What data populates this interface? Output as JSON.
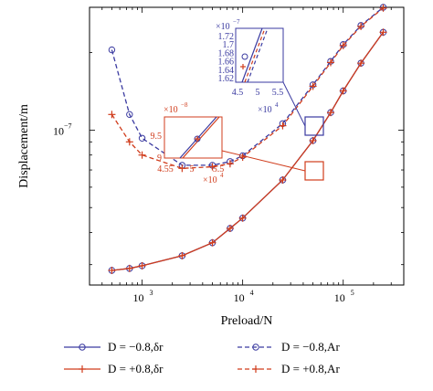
{
  "colors": {
    "blue": "#3a3aa0",
    "red": "#d03c1c",
    "axis": "#000000"
  },
  "chart_data": {
    "type": "line",
    "xlabel": "Preload/N",
    "ylabel": "Displacement/m",
    "xscale": "log",
    "yscale": "log",
    "xlim": [
      300,
      400000
    ],
    "ylim": [
      2.5e-08,
      3e-07
    ],
    "x_ticks": [
      {
        "value": 1000,
        "base": "10",
        "exp": "3"
      },
      {
        "value": 10000,
        "base": "10",
        "exp": "4"
      },
      {
        "value": 100000,
        "base": "10",
        "exp": "5"
      }
    ],
    "y_ticks": [
      {
        "value": 1e-07,
        "base": "10",
        "exp": "−7"
      }
    ],
    "series": [
      {
        "name": "D = −0.8,δr",
        "color": "#3a3aa0",
        "dash": "solid",
        "marker": "circle",
        "x": [
          500,
          750,
          1000,
          2500,
          5000,
          7500,
          10000,
          25000,
          50000,
          75000,
          100000,
          150000,
          250000
        ],
        "y": [
          2.85e-08,
          2.9e-08,
          2.97e-08,
          3.25e-08,
          3.65e-08,
          4.15e-08,
          4.55e-08,
          6.4e-08,
          9.1e-08,
          1.17e-07,
          1.42e-07,
          1.82e-07,
          2.4e-07
        ]
      },
      {
        "name": "D = +0.8,δr",
        "color": "#d03c1c",
        "dash": "solid",
        "marker": "plus",
        "x": [
          500,
          750,
          1000,
          2500,
          5000,
          7500,
          10000,
          25000,
          50000,
          75000,
          100000,
          150000,
          250000
        ],
        "y": [
          2.85e-08,
          2.9e-08,
          2.97e-08,
          3.25e-08,
          3.65e-08,
          4.15e-08,
          4.55e-08,
          6.4e-08,
          9.1e-08,
          1.17e-07,
          1.42e-07,
          1.82e-07,
          2.4e-07
        ]
      },
      {
        "name": "D = −0.8,Ar",
        "color": "#3a3aa0",
        "dash": "dashed",
        "marker": "circle",
        "x": [
          500,
          750,
          1000,
          2500,
          5000,
          7500,
          10000,
          25000,
          50000,
          75000,
          100000,
          150000,
          250000
        ],
        "y": [
          2.05e-07,
          1.15e-07,
          9.3e-08,
          7.3e-08,
          7.3e-08,
          7.55e-08,
          7.95e-08,
          1.06e-07,
          1.5e-07,
          1.85e-07,
          2.15e-07,
          2.55e-07,
          3e-07
        ]
      },
      {
        "name": "D = +0.8,Ar",
        "color": "#d03c1c",
        "dash": "dashed",
        "marker": "plus",
        "x": [
          500,
          750,
          1000,
          2500,
          5000,
          7500,
          10000,
          25000,
          50000,
          75000,
          100000,
          150000,
          250000
        ],
        "y": [
          1.15e-07,
          9e-08,
          8e-08,
          7.1e-08,
          7.2e-08,
          7.4e-08,
          7.85e-08,
          1.04e-07,
          1.48e-07,
          1.83e-07,
          2.13e-07,
          2.53e-07,
          2.98e-07
        ]
      }
    ],
    "legend": {
      "placement": "bottom",
      "entries": [
        "D = −0.8,δr",
        "D = −0.8,Ar",
        "D = +0.8,δr",
        "D = +0.8,Ar"
      ]
    },
    "insets": [
      {
        "name": "inset-blue",
        "color": "#3a3aa0",
        "multiplier_y": {
          "base": "×10",
          "exp": "−7"
        },
        "multiplier_x": {
          "base": "×10",
          "exp": "4"
        },
        "y_tick_labels": [
          "1.72",
          "1.7",
          "1.68",
          "1.66",
          "1.64",
          "1.62"
        ],
        "x_tick_labels": [
          "4.5",
          "5",
          "5.5"
        ]
      },
      {
        "name": "inset-red",
        "color": "#d03c1c",
        "multiplier_y": {
          "base": "×10",
          "exp": "−8"
        },
        "multiplier_x": {
          "base": "×10",
          "exp": "4"
        },
        "y_tick_labels": [
          "9.5",
          "9"
        ],
        "x_tick_labels": [
          "4.55",
          "5",
          "5.5"
        ]
      }
    ]
  }
}
